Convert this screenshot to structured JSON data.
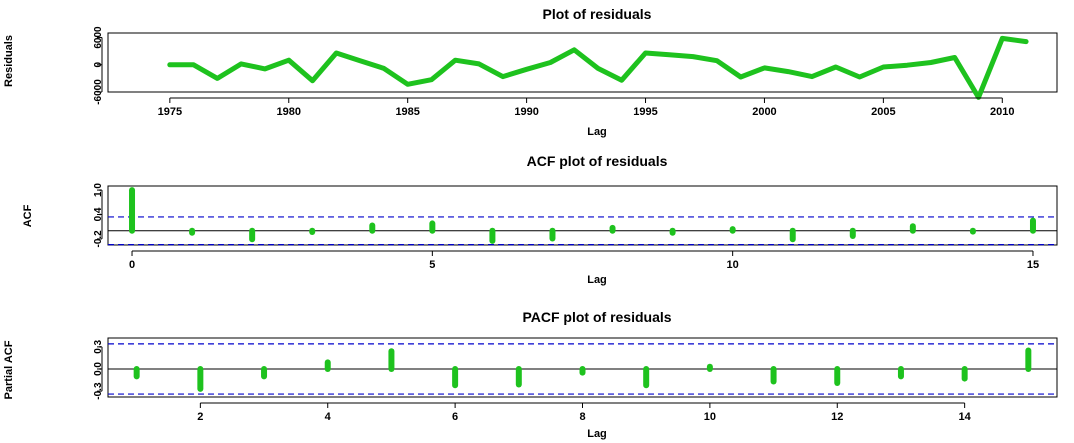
{
  "colors": {
    "series": "#1ec21e",
    "confidence_band": "#0000cc",
    "axis": "#000000"
  },
  "chart_data": [
    {
      "id": "residuals",
      "type": "line",
      "title": "Plot of residuals",
      "xlabel": "Lag",
      "ylabel": "Residuals",
      "xlim": [
        1972.4,
        2012.3
      ],
      "ylim": [
        -6000,
        7000
      ],
      "xticks": [
        1975,
        1980,
        1985,
        1990,
        1995,
        2000,
        2005,
        2010
      ],
      "yticks": [
        -6000,
        0,
        6000
      ],
      "ytick_labels": [
        "-6000",
        "0",
        "6000"
      ],
      "x": [
        1975,
        1976,
        1977,
        1978,
        1979,
        1980,
        1981,
        1982,
        1983,
        1984,
        1985,
        1986,
        1987,
        1988,
        1989,
        1990,
        1991,
        1992,
        1993,
        1994,
        1995,
        1996,
        1997,
        1998,
        1999,
        2000,
        2001,
        2002,
        2003,
        2004,
        2005,
        2006,
        2007,
        2008,
        2009,
        2010,
        2011
      ],
      "values": [
        0,
        0,
        -3000,
        200,
        -900,
        1000,
        -3500,
        2600,
        900,
        -800,
        -4300,
        -3300,
        1000,
        200,
        -2600,
        -1000,
        500,
        3300,
        -800,
        -3400,
        2600,
        2200,
        1800,
        900,
        -2700,
        -700,
        -1500,
        -2600,
        -500,
        -2700,
        -500,
        -100,
        500,
        1600,
        -7200,
        5800,
        5100
      ]
    },
    {
      "id": "acf",
      "type": "bar",
      "title": "ACF plot of residuals",
      "xlabel": "Lag",
      "ylabel": "ACF",
      "xlim": [
        -0.4,
        15.4
      ],
      "ylim": [
        -0.35,
        1.1
      ],
      "xticks": [
        0,
        5,
        10,
        15
      ],
      "yticks": [
        -0.2,
        0.4,
        1.0
      ],
      "ytick_labels": [
        "-0.2",
        "0.4",
        "1.0"
      ],
      "confidence_limit": 0.34,
      "lags": [
        0,
        1,
        2,
        3,
        4,
        5,
        6,
        7,
        8,
        9,
        10,
        11,
        12,
        13,
        14,
        15
      ],
      "values": [
        1.0,
        -0.05,
        -0.21,
        -0.03,
        0.13,
        0.18,
        -0.25,
        -0.19,
        0.07,
        -0.05,
        0.04,
        -0.21,
        -0.13,
        0.11,
        -0.02,
        0.25
      ]
    },
    {
      "id": "pacf",
      "type": "bar",
      "title": "PACF plot of residuals",
      "xlabel": "Lag",
      "ylabel": "Partial ACF",
      "xlim": [
        0.55,
        15.45
      ],
      "ylim": [
        -0.38,
        0.42
      ],
      "xticks": [
        2,
        4,
        6,
        8,
        10,
        12,
        14
      ],
      "yticks": [
        -0.3,
        0.0,
        0.3
      ],
      "ytick_labels": [
        "-0.3",
        "0.0",
        "0.3"
      ],
      "confidence_limit": 0.34,
      "lags": [
        1,
        2,
        3,
        4,
        5,
        6,
        7,
        8,
        9,
        10,
        11,
        12,
        13,
        14,
        15
      ],
      "values": [
        -0.1,
        -0.27,
        -0.1,
        0.09,
        0.24,
        -0.22,
        -0.21,
        -0.05,
        -0.22,
        0.03,
        -0.17,
        -0.19,
        -0.1,
        -0.13,
        0.25
      ]
    }
  ]
}
